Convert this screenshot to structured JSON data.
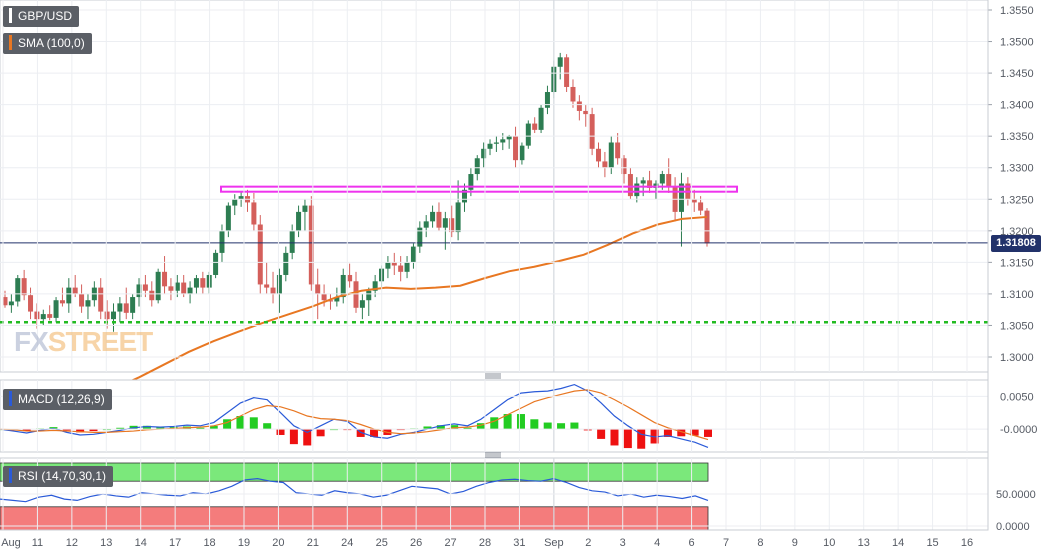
{
  "symbol": "GBP/USD",
  "current_price_label": "1.31808",
  "watermark": {
    "left": "FX",
    "right": "STREET"
  },
  "indicators": {
    "sma": "SMA (100,0)",
    "macd": "MACD (12,26,9)",
    "rsi": "RSI (14,70,30,1)"
  },
  "colors": {
    "up_candle": "#2d7d52",
    "down_candle": "#d45f5b",
    "sma": "#e87722",
    "macd": "#2a5ad8",
    "signal": "#e87722",
    "hist_up": "#22cc22",
    "hist_down": "#ee1111",
    "rsi": "#2a5ad8",
    "support": "#22bb22",
    "resistance": "#ee33ee",
    "current_line": "#22326a",
    "overbought_zone": "#7be87b",
    "oversold_zone": "#f47c7c"
  },
  "chart_data": [
    {
      "type": "candlestick",
      "title": "GBP/USD",
      "y_ticks": [
        "1.3550",
        "1.3500",
        "1.3450",
        "1.3400",
        "1.3350",
        "1.3300",
        "1.3250",
        "1.3200",
        "1.3150",
        "1.3100",
        "1.3050",
        "1.3000"
      ],
      "y_range": [
        1.2975,
        1.356
      ],
      "x_ticks": [
        "Aug",
        "11",
        "12",
        "13",
        "14",
        "17",
        "18",
        "19",
        "20",
        "21",
        "24",
        "25",
        "26",
        "27",
        "28",
        "31",
        "Sep",
        "2",
        "3",
        "4",
        "6",
        "7",
        "8",
        "9",
        "10",
        "13",
        "14",
        "15",
        "16"
      ],
      "current_price": 1.31808,
      "support_level": 1.3055,
      "resistance_zone": [
        1.3262,
        1.327
      ],
      "sma_100": [
        1.2935,
        1.295,
        1.2968,
        1.2988,
        1.3008,
        1.3025,
        1.304,
        1.3054,
        1.3067,
        1.308,
        1.3095,
        1.3105,
        1.311,
        1.3108,
        1.311,
        1.3113,
        1.3125,
        1.3136,
        1.3143,
        1.3152,
        1.3162,
        1.3178,
        1.3196,
        1.321,
        1.3219,
        1.3222
      ],
      "candles": [
        [
          1.3095,
          1.3105,
          1.3078,
          1.3082
        ],
        [
          1.3082,
          1.31,
          1.307,
          1.3088
        ],
        [
          1.3088,
          1.313,
          1.308,
          1.3125
        ],
        [
          1.3125,
          1.3138,
          1.309,
          1.3098
        ],
        [
          1.3098,
          1.311,
          1.306,
          1.3072
        ],
        [
          1.3072,
          1.3085,
          1.3045,
          1.306
        ],
        [
          1.306,
          1.3075,
          1.305,
          1.3068
        ],
        [
          1.3068,
          1.3082,
          1.3058,
          1.3062
        ],
        [
          1.3062,
          1.3095,
          1.3055,
          1.309
        ],
        [
          1.309,
          1.311,
          1.308,
          1.3085
        ],
        [
          1.3085,
          1.3125,
          1.307,
          1.311
        ],
        [
          1.311,
          1.313,
          1.3095,
          1.31
        ],
        [
          1.31,
          1.3115,
          1.307,
          1.308
        ],
        [
          1.308,
          1.31,
          1.306,
          1.309
        ],
        [
          1.309,
          1.312,
          1.308,
          1.311
        ],
        [
          1.311,
          1.3125,
          1.306,
          1.3072
        ],
        [
          1.3072,
          1.309,
          1.3045,
          1.306
        ],
        [
          1.306,
          1.3085,
          1.304,
          1.3072
        ],
        [
          1.3072,
          1.3095,
          1.3055,
          1.3085
        ],
        [
          1.3085,
          1.311,
          1.306,
          1.307
        ],
        [
          1.307,
          1.31,
          1.306,
          1.3095
        ],
        [
          1.3095,
          1.3125,
          1.308,
          1.3115
        ],
        [
          1.3115,
          1.313,
          1.3095,
          1.3105
        ],
        [
          1.3105,
          1.312,
          1.308,
          1.309
        ],
        [
          1.309,
          1.314,
          1.3085,
          1.3135
        ],
        [
          1.3135,
          1.316,
          1.31,
          1.3112
        ],
        [
          1.3112,
          1.3125,
          1.309,
          1.3105
        ],
        [
          1.3105,
          1.313,
          1.3095,
          1.3118
        ],
        [
          1.3118,
          1.313,
          1.3095,
          1.31
        ],
        [
          1.31,
          1.312,
          1.3085,
          1.311
        ],
        [
          1.311,
          1.313,
          1.31,
          1.3125
        ],
        [
          1.3125,
          1.3135,
          1.31,
          1.311
        ],
        [
          1.311,
          1.3135,
          1.31,
          1.313
        ],
        [
          1.313,
          1.317,
          1.3125,
          1.3165
        ],
        [
          1.3165,
          1.321,
          1.315,
          1.32
        ],
        [
          1.32,
          1.3245,
          1.319,
          1.324
        ],
        [
          1.324,
          1.3258,
          1.3225,
          1.325
        ],
        [
          1.325,
          1.3262,
          1.3238,
          1.3255
        ],
        [
          1.3255,
          1.3265,
          1.323,
          1.3245
        ],
        [
          1.3245,
          1.326,
          1.32,
          1.321
        ],
        [
          1.321,
          1.3225,
          1.31,
          1.3115
        ],
        [
          1.3115,
          1.315,
          1.31,
          1.311
        ],
        [
          1.311,
          1.3135,
          1.3085,
          1.31
        ],
        [
          1.31,
          1.314,
          1.307,
          1.313
        ],
        [
          1.313,
          1.3175,
          1.312,
          1.3165
        ],
        [
          1.3165,
          1.321,
          1.3155,
          1.32
        ],
        [
          1.32,
          1.324,
          1.319,
          1.323
        ],
        [
          1.323,
          1.325,
          1.32,
          1.324
        ],
        [
          1.324,
          1.3255,
          1.3105,
          1.3115
        ],
        [
          1.3115,
          1.314,
          1.306,
          1.31
        ],
        [
          1.31,
          1.3115,
          1.308,
          1.309
        ],
        [
          1.309,
          1.31,
          1.3075,
          1.3088
        ],
        [
          1.3088,
          1.311,
          1.308,
          1.3095
        ],
        [
          1.3095,
          1.314,
          1.3085,
          1.313
        ],
        [
          1.313,
          1.3148,
          1.311,
          1.312
        ],
        [
          1.312,
          1.3135,
          1.307,
          1.3078
        ],
        [
          1.3078,
          1.31,
          1.306,
          1.309
        ],
        [
          1.309,
          1.311,
          1.3065,
          1.3105
        ],
        [
          1.3105,
          1.313,
          1.3095,
          1.312
        ],
        [
          1.312,
          1.3145,
          1.311,
          1.314
        ],
        [
          1.314,
          1.316,
          1.3125,
          1.315
        ],
        [
          1.315,
          1.3165,
          1.313,
          1.3145
        ],
        [
          1.3145,
          1.316,
          1.312,
          1.3135
        ],
        [
          1.3135,
          1.316,
          1.3125,
          1.315
        ],
        [
          1.315,
          1.318,
          1.314,
          1.3175
        ],
        [
          1.3175,
          1.3215,
          1.3165,
          1.3205
        ],
        [
          1.3205,
          1.3225,
          1.319,
          1.3215
        ],
        [
          1.3215,
          1.324,
          1.3205,
          1.323
        ],
        [
          1.323,
          1.3245,
          1.32,
          1.3205
        ],
        [
          1.3205,
          1.323,
          1.317,
          1.322
        ],
        [
          1.322,
          1.324,
          1.319,
          1.3198
        ],
        [
          1.3198,
          1.328,
          1.3185,
          1.3245
        ],
        [
          1.3245,
          1.3275,
          1.323,
          1.3265
        ],
        [
          1.3265,
          1.33,
          1.3255,
          1.329
        ],
        [
          1.329,
          1.332,
          1.328,
          1.3315
        ],
        [
          1.3315,
          1.334,
          1.33,
          1.333
        ],
        [
          1.333,
          1.3345,
          1.332,
          1.3338
        ],
        [
          1.3338,
          1.335,
          1.3325,
          1.334
        ],
        [
          1.334,
          1.3355,
          1.3328,
          1.3345
        ],
        [
          1.3345,
          1.3352,
          1.333,
          1.335
        ],
        [
          1.335,
          1.3365,
          1.33,
          1.3312
        ],
        [
          1.3312,
          1.334,
          1.3305,
          1.3335
        ],
        [
          1.3335,
          1.3375,
          1.333,
          1.337
        ],
        [
          1.337,
          1.338,
          1.3355,
          1.336
        ],
        [
          1.336,
          1.34,
          1.3355,
          1.3395
        ],
        [
          1.3395,
          1.343,
          1.3385,
          1.342
        ],
        [
          1.342,
          1.347,
          1.341,
          1.346
        ],
        [
          1.346,
          1.3482,
          1.344,
          1.3475
        ],
        [
          1.3475,
          1.348,
          1.342,
          1.3428
        ],
        [
          1.3428,
          1.344,
          1.3395,
          1.3405
        ],
        [
          1.3405,
          1.3415,
          1.3375,
          1.339
        ],
        [
          1.339,
          1.34,
          1.3365,
          1.3385
        ],
        [
          1.3385,
          1.3395,
          1.332,
          1.333
        ],
        [
          1.333,
          1.334,
          1.33,
          1.331
        ],
        [
          1.331,
          1.3325,
          1.3285,
          1.33
        ],
        [
          1.33,
          1.335,
          1.329,
          1.334
        ],
        [
          1.334,
          1.3355,
          1.3305,
          1.3315
        ],
        [
          1.3315,
          1.332,
          1.3275,
          1.329
        ],
        [
          1.329,
          1.33,
          1.325,
          1.3255
        ],
        [
          1.3255,
          1.3285,
          1.3245,
          1.3275
        ],
        [
          1.3275,
          1.3285,
          1.3255,
          1.328
        ],
        [
          1.328,
          1.3295,
          1.326,
          1.3268
        ],
        [
          1.3268,
          1.328,
          1.325,
          1.3275
        ],
        [
          1.3275,
          1.3295,
          1.3265,
          1.329
        ],
        [
          1.329,
          1.3315,
          1.326,
          1.327
        ],
        [
          1.327,
          1.3285,
          1.3215,
          1.323
        ],
        [
          1.323,
          1.3292,
          1.3175,
          1.3275
        ],
        [
          1.3275,
          1.3285,
          1.324,
          1.325
        ],
        [
          1.325,
          1.3265,
          1.323,
          1.3245
        ],
        [
          1.3245,
          1.3255,
          1.3225,
          1.3232
        ],
        [
          1.3232,
          1.3236,
          1.3175,
          1.318
        ]
      ]
    },
    {
      "type": "line",
      "title": "MACD (12,26,9)",
      "y_ticks": [
        "0.0050",
        "-0.0000"
      ],
      "y_range": [
        -0.0035,
        0.0075
      ],
      "macd": [
        0.0,
        -0.0003,
        -0.0006,
        -0.0002,
        0.0001,
        -0.0005,
        -0.0009,
        -0.0008,
        -0.0005,
        -0.0002,
        0.0002,
        0.0004,
        0.0003,
        0.0004,
        0.0006,
        0.0005,
        0.001,
        0.0025,
        0.004,
        0.0048,
        0.0045,
        0.0025,
        0.0005,
        -0.0005,
        0.0005,
        0.0015,
        0.0012,
        -0.0005,
        -0.0012,
        -0.0014,
        -0.0008,
        -0.0005,
        0.0,
        0.0005,
        0.0008,
        0.0005,
        0.0015,
        0.003,
        0.0045,
        0.0055,
        0.0057,
        0.0058,
        0.0062,
        0.0068,
        0.0058,
        0.004,
        0.002,
        0.0005,
        -0.0008,
        -0.0012,
        -0.001,
        -0.0015,
        -0.002,
        -0.0028
      ],
      "signal": [
        0.0,
        -0.0001,
        -0.0003,
        -0.0003,
        -0.0002,
        -0.0003,
        -0.0004,
        -0.0005,
        -0.0005,
        -0.0004,
        -0.0003,
        -0.0001,
        0.0,
        0.0001,
        0.0002,
        0.0003,
        0.0005,
        0.001,
        0.002,
        0.003,
        0.0036,
        0.0034,
        0.0028,
        0.002,
        0.0016,
        0.0015,
        0.0013,
        0.0007,
        0.0,
        -0.0005,
        -0.0007,
        -0.0006,
        -0.0004,
        -0.0001,
        0.0002,
        0.0003,
        0.0006,
        0.0012,
        0.0022,
        0.0032,
        0.0042,
        0.0048,
        0.0053,
        0.0058,
        0.006,
        0.0055,
        0.0045,
        0.0034,
        0.0022,
        0.001,
        0.0002,
        -0.0004,
        -0.001,
        -0.0016
      ]
    },
    {
      "type": "line",
      "title": "RSI (14,70,30,1)",
      "y_ticks": [
        "50.0000",
        "0.0000"
      ],
      "y_range": [
        0,
        100
      ],
      "levels": [
        70,
        30
      ],
      "rsi": [
        42,
        40,
        38,
        45,
        48,
        42,
        40,
        46,
        50,
        47,
        45,
        52,
        50,
        48,
        47,
        52,
        50,
        55,
        62,
        72,
        74,
        70,
        68,
        52,
        50,
        48,
        55,
        52,
        50,
        45,
        48,
        55,
        62,
        60,
        58,
        50,
        54,
        62,
        68,
        72,
        73,
        71,
        70,
        74,
        68,
        60,
        55,
        53,
        47,
        50,
        45,
        48,
        46,
        43,
        47,
        40
      ]
    }
  ]
}
